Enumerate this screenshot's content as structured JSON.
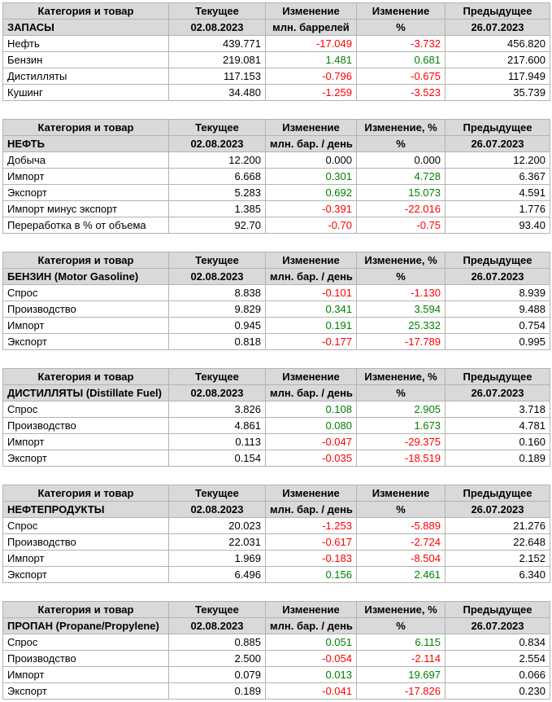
{
  "colors": {
    "positive": "#008000",
    "negative": "#FF0000",
    "header_bg": "#D9D9D9",
    "border": "#B3B3B3"
  },
  "chart_data": [
    {
      "type": "table",
      "id": "zapasy",
      "title": "ЗАПАСЫ",
      "headers": [
        "Категория и товар",
        "Текущее",
        "Изменение",
        "Изменение",
        "Предыдущее"
      ],
      "subheader": [
        "ЗАПАСЫ",
        "02.08.2023",
        "млн. баррелей",
        "%",
        "26.07.2023"
      ],
      "rows": [
        [
          "Нефть",
          "439.771",
          "-17.049",
          "-3.732",
          "456.820"
        ],
        [
          "Бензин",
          "219.081",
          "1.481",
          "0.681",
          "217.600"
        ],
        [
          "Дистилляты",
          "117.153",
          "-0.796",
          "-0.675",
          "117.949"
        ],
        [
          "Кушинг",
          "34.480",
          "-1.259",
          "-3.523",
          "35.739"
        ]
      ]
    },
    {
      "type": "table",
      "id": "neft",
      "title": "НЕФТЬ",
      "headers": [
        "Категория и товар",
        "Текущее",
        "Изменение",
        "Изменение, %",
        "Предыдущее"
      ],
      "subheader": [
        "НЕФТЬ",
        "02.08.2023",
        "млн. бар. / день",
        "%",
        "26.07.2023"
      ],
      "rows": [
        [
          "Добыча",
          "12.200",
          "0.000",
          "0.000",
          "12.200"
        ],
        [
          "Импорт",
          "6.668",
          "0.301",
          "4.728",
          "6.367"
        ],
        [
          "Экспорт",
          "5.283",
          "0.692",
          "15.073",
          "4.591"
        ],
        [
          "Импорт минус экспорт",
          "1.385",
          "-0.391",
          "-22.016",
          "1.776"
        ],
        [
          "Переработка в % от объема",
          "92.70",
          "-0.70",
          "-0.75",
          "93.40"
        ]
      ]
    },
    {
      "type": "table",
      "id": "benzin",
      "title": "БЕНЗИН (Motor Gasoline)",
      "headers": [
        "Категория и товар",
        "Текущее",
        "Изменение",
        "Изменение, %",
        "Предыдущее"
      ],
      "subheader": [
        "БЕНЗИН (Motor Gasoline)",
        "02.08.2023",
        "млн. бар. / день",
        "%",
        "26.07.2023"
      ],
      "rows": [
        [
          "Спрос",
          "8.838",
          "-0.101",
          "-1.130",
          "8.939"
        ],
        [
          "Производство",
          "9.829",
          "0.341",
          "3.594",
          "9.488"
        ],
        [
          "Импорт",
          "0.945",
          "0.191",
          "25.332",
          "0.754"
        ],
        [
          "Экспорт",
          "0.818",
          "-0.177",
          "-17.789",
          "0.995"
        ]
      ]
    },
    {
      "type": "table",
      "id": "distillyaty",
      "title": "ДИСТИЛЛЯТЫ (Distillate Fuel)",
      "headers": [
        "Категория и товар",
        "Текущее",
        "Изменение",
        "Изменение, %",
        "Предыдущее"
      ],
      "subheader": [
        "ДИСТИЛЛЯТЫ (Distillate Fuel)",
        "02.08.2023",
        "млн. бар. / день",
        "%",
        "26.07.2023"
      ],
      "rows": [
        [
          "Спрос",
          "3.826",
          "0.108",
          "2.905",
          "3.718"
        ],
        [
          "Производство",
          "4.861",
          "0.080",
          "1.673",
          "4.781"
        ],
        [
          "Импорт",
          "0.113",
          "-0.047",
          "-29.375",
          "0.160"
        ],
        [
          "Экспорт",
          "0.154",
          "-0.035",
          "-18.519",
          "0.189"
        ]
      ]
    },
    {
      "type": "table",
      "id": "nefteprodukty",
      "title": "НЕФТЕПРОДУКТЫ",
      "headers": [
        "Категория и товар",
        "Текущее",
        "Изменение",
        "Изменение",
        "Предыдущее"
      ],
      "subheader": [
        "НЕФТЕПРОДУКТЫ",
        "02.08.2023",
        "млн. бар. / день",
        "%",
        "26.07.2023"
      ],
      "rows": [
        [
          "Спрос",
          "20.023",
          "-1.253",
          "-5.889",
          "21.276"
        ],
        [
          "Производство",
          "22.031",
          "-0.617",
          "-2.724",
          "22.648"
        ],
        [
          "Импорт",
          "1.969",
          "-0.183",
          "-8.504",
          "2.152"
        ],
        [
          "Экспорт",
          "6.496",
          "0.156",
          "2.461",
          "6.340"
        ]
      ]
    },
    {
      "type": "table",
      "id": "propan",
      "title": "ПРОПАН (Propane/Propylene)",
      "headers": [
        "Категория и товар",
        "Текущее",
        "Изменение",
        "Изменение, %",
        "Предыдущее"
      ],
      "subheader": [
        "ПРОПАН (Propane/Propylene)",
        "02.08.2023",
        "млн. бар. / день",
        "%",
        "26.07.2023"
      ],
      "rows": [
        [
          "Спрос",
          "0.885",
          "0.051",
          "6.115",
          "0.834"
        ],
        [
          "Производство",
          "2.500",
          "-0.054",
          "-2.114",
          "2.554"
        ],
        [
          "Импорт",
          "0.079",
          "0.013",
          "19.697",
          "0.066"
        ],
        [
          "Экспорт",
          "0.189",
          "-0.041",
          "-17.826",
          "0.230"
        ]
      ]
    }
  ]
}
